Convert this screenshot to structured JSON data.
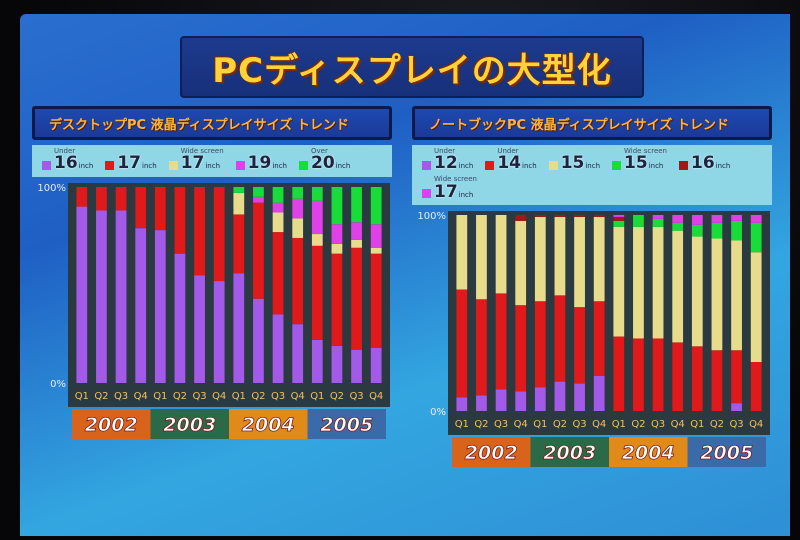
{
  "slide": {
    "title": "PCディスプレイの大型化"
  },
  "chart_data": [
    {
      "type": "bar",
      "stacked": true,
      "title": "デスクトップPC 液晶ディスプレイサイズ トレンド",
      "categories": [
        "Q1",
        "Q2",
        "Q3",
        "Q4",
        "Q1",
        "Q2",
        "Q3",
        "Q4",
        "Q1",
        "Q2",
        "Q3",
        "Q4",
        "Q1",
        "Q2",
        "Q3",
        "Q4"
      ],
      "years": [
        "2002",
        "2003",
        "2004",
        "2005"
      ],
      "year_colors": [
        "#d8641c",
        "#2a6a46",
        "#e08a1a",
        "#3a6aa8"
      ],
      "yticks": [
        "100%",
        "0%"
      ],
      "ylim": [
        0,
        100
      ],
      "series": [
        {
          "prefix": "Under",
          "size": "16",
          "unit": "inch",
          "color": "#a45ae8",
          "values": [
            90,
            88,
            88,
            79,
            78,
            66,
            55,
            52,
            56,
            43,
            35,
            30,
            22,
            19,
            17,
            18
          ]
        },
        {
          "prefix": "",
          "size": "17",
          "unit": "inch",
          "color": "#e01a1a",
          "values": [
            10,
            12,
            12,
            21,
            22,
            34,
            45,
            48,
            30,
            49,
            42,
            44,
            48,
            47,
            52,
            48
          ]
        },
        {
          "prefix": "Wide screen",
          "size": "17",
          "unit": "inch",
          "color": "#e6dc8c",
          "values": [
            0,
            0,
            0,
            0,
            0,
            0,
            0,
            0,
            11,
            0,
            10,
            10,
            6,
            5,
            4,
            3
          ]
        },
        {
          "prefix": "",
          "size": "19",
          "unit": "inch",
          "color": "#e040e8",
          "values": [
            0,
            0,
            0,
            0,
            0,
            0,
            0,
            0,
            0,
            3,
            5,
            10,
            17,
            10,
            9,
            12
          ]
        },
        {
          "prefix": "Over",
          "size": "20",
          "unit": "inch",
          "color": "#18dc38",
          "values": [
            0,
            0,
            0,
            0,
            0,
            0,
            0,
            0,
            3,
            5,
            8,
            6,
            7,
            19,
            18,
            19
          ]
        }
      ]
    },
    {
      "type": "bar",
      "stacked": true,
      "title": "ノートブックPC 液晶ディスプレイサイズ トレンド",
      "categories": [
        "Q1",
        "Q2",
        "Q3",
        "Q4",
        "Q1",
        "Q2",
        "Q3",
        "Q4",
        "Q1",
        "Q2",
        "Q3",
        "Q4",
        "Q1",
        "Q2",
        "Q3",
        "Q4"
      ],
      "years": [
        "2002",
        "2003",
        "2004",
        "2005"
      ],
      "year_colors": [
        "#d8641c",
        "#2a6a46",
        "#e08a1a",
        "#3a6aa8"
      ],
      "yticks": [
        "100%",
        "0%"
      ],
      "ylim": [
        0,
        100
      ],
      "series": [
        {
          "prefix": "Under",
          "size": "12",
          "unit": "inch",
          "color": "#a45ae8",
          "values": [
            7,
            8,
            11,
            10,
            12,
            15,
            14,
            18,
            0,
            0,
            0,
            0,
            0,
            0,
            4,
            0
          ]
        },
        {
          "prefix": "Under",
          "size": "14",
          "unit": "inch",
          "color": "#e01a1a",
          "values": [
            55,
            49,
            49,
            44,
            44,
            44,
            39,
            38,
            38,
            37,
            37,
            35,
            33,
            31,
            27,
            25
          ]
        },
        {
          "prefix": "",
          "size": "15",
          "unit": "inch",
          "color": "#e6dc8c",
          "values": [
            38,
            43,
            40,
            43,
            43,
            40,
            46,
            43,
            56,
            57,
            57,
            57,
            56,
            57,
            56,
            56
          ]
        },
        {
          "prefix": "Wide screen",
          "size": "15",
          "unit": "inch",
          "color": "#18dc38",
          "values": [
            0,
            0,
            0,
            0,
            0,
            0,
            0,
            0,
            3,
            6,
            4,
            4,
            6,
            8,
            10,
            15
          ]
        },
        {
          "prefix": "",
          "size": "16",
          "unit": "inch",
          "color": "#a01818",
          "values": [
            0,
            0,
            0,
            3,
            1,
            1,
            1,
            1,
            2,
            0,
            0,
            0,
            0,
            0,
            0,
            0
          ]
        },
        {
          "prefix": "Wide screen",
          "size": "17",
          "unit": "inch",
          "color": "#e040e8",
          "values": [
            0,
            0,
            0,
            0,
            0,
            0,
            0,
            0,
            1,
            0,
            2,
            4,
            5,
            4,
            3,
            4
          ]
        }
      ]
    }
  ]
}
